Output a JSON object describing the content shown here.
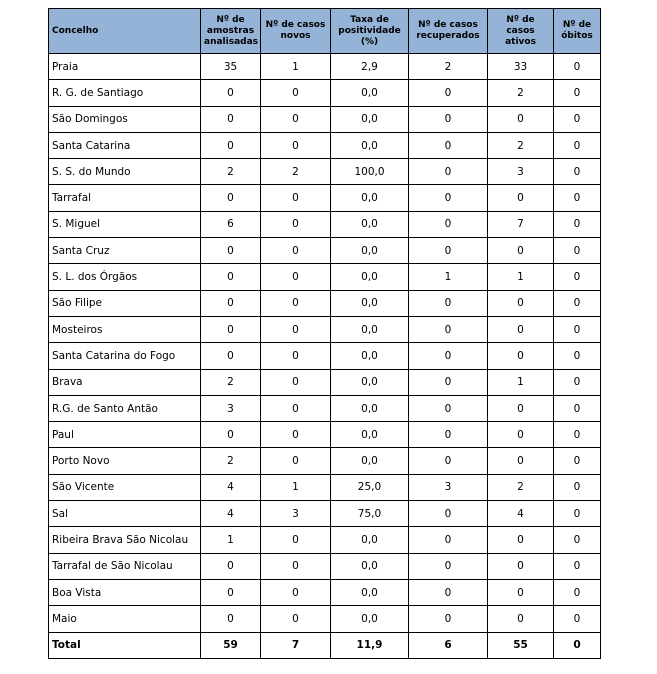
{
  "table": {
    "header": [
      "Concelho",
      "Nº de amostras analisadas",
      "Nº de casos novos",
      "Taxa de positividade (%)",
      "Nº de casos recuperados",
      "Nº de casos ativos",
      "Nº de óbitos"
    ],
    "rows": [
      [
        "Praia",
        "35",
        "1",
        "2,9",
        "2",
        "33",
        "0"
      ],
      [
        "R. G. de Santiago",
        "0",
        "0",
        "0,0",
        "0",
        "2",
        "0"
      ],
      [
        "São Domingos",
        "0",
        "0",
        "0,0",
        "0",
        "0",
        "0"
      ],
      [
        "Santa Catarina",
        "0",
        "0",
        "0,0",
        "0",
        "2",
        "0"
      ],
      [
        "S. S. do Mundo",
        "2",
        "2",
        "100,0",
        "0",
        "3",
        "0"
      ],
      [
        "Tarrafal",
        "0",
        "0",
        "0,0",
        "0",
        "0",
        "0"
      ],
      [
        "S. Miguel",
        "6",
        "0",
        "0,0",
        "0",
        "7",
        "0"
      ],
      [
        "Santa Cruz",
        "0",
        "0",
        "0,0",
        "0",
        "0",
        "0"
      ],
      [
        "S. L. dos Órgãos",
        "0",
        "0",
        "0,0",
        "1",
        "1",
        "0"
      ],
      [
        "São Filipe",
        "0",
        "0",
        "0,0",
        "0",
        "0",
        "0"
      ],
      [
        "Mosteiros",
        "0",
        "0",
        "0,0",
        "0",
        "0",
        "0"
      ],
      [
        "Santa Catarina do Fogo",
        "0",
        "0",
        "0,0",
        "0",
        "0",
        "0"
      ],
      [
        "Brava",
        "2",
        "0",
        "0,0",
        "0",
        "1",
        "0"
      ],
      [
        "R.G. de Santo Antão",
        "3",
        "0",
        "0,0",
        "0",
        "0",
        "0"
      ],
      [
        "Paul",
        "0",
        "0",
        "0,0",
        "0",
        "0",
        "0"
      ],
      [
        "Porto Novo",
        "2",
        "0",
        "0,0",
        "0",
        "0",
        "0"
      ],
      [
        "São Vicente",
        "4",
        "1",
        "25,0",
        "3",
        "2",
        "0"
      ],
      [
        "Sal",
        "4",
        "3",
        "75,0",
        "0",
        "4",
        "0"
      ],
      [
        "Ribeira Brava São Nicolau",
        "1",
        "0",
        "0,0",
        "0",
        "0",
        "0"
      ],
      [
        "Tarrafal de São Nicolau",
        "0",
        "0",
        "0,0",
        "0",
        "0",
        "0"
      ],
      [
        "Boa Vista",
        "0",
        "0",
        "0,0",
        "0",
        "0",
        "0"
      ],
      [
        "Maio",
        "0",
        "0",
        "0,0",
        "0",
        "0",
        "0"
      ]
    ],
    "total": [
      "Total",
      "59",
      "7",
      "11,9",
      "6",
      "55",
      "0"
    ]
  }
}
